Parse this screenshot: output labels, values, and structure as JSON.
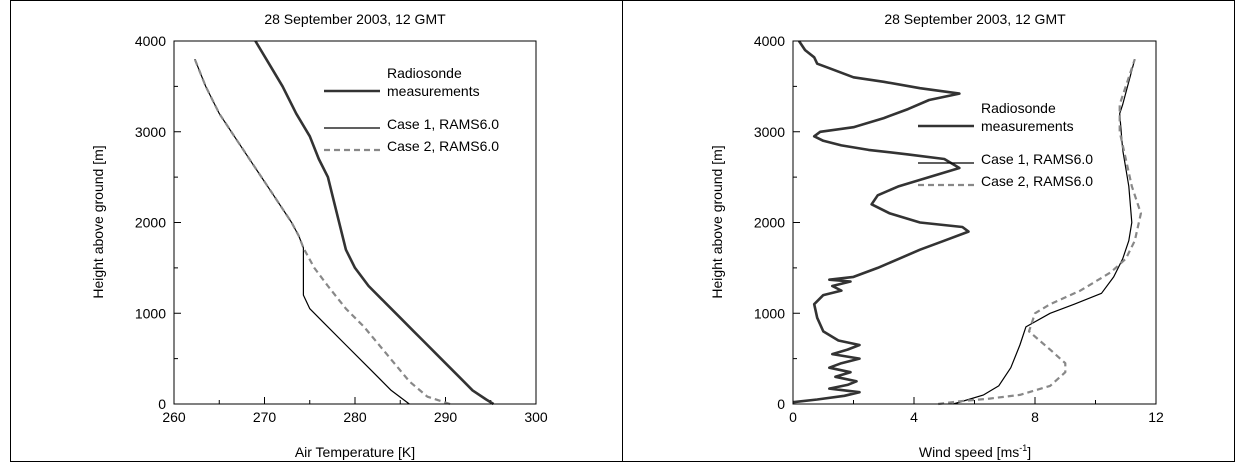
{
  "chart_data": [
    {
      "type": "line",
      "title": "28 September 2003, 12 GMT",
      "xlabel": "Air Temperature [K]",
      "ylabel": "Height above ground [m]",
      "xlim": [
        260,
        300
      ],
      "ylim": [
        0,
        4000
      ],
      "xticks": [
        260,
        270,
        280,
        290,
        300
      ],
      "yticks": [
        0,
        1000,
        2000,
        3000,
        4000
      ],
      "legend_position": "top-right",
      "series": [
        {
          "name": "Radiosonde measurements",
          "legend_lines": [
            "Radiosonde",
            "measurements"
          ],
          "style": "thick",
          "color": "#333333",
          "points": [
            [
              295.3,
              0
            ],
            [
              294.5,
              50
            ],
            [
              293,
              150
            ],
            [
              291.5,
              300
            ],
            [
              290,
              450
            ],
            [
              289,
              550
            ],
            [
              287.5,
              700
            ],
            [
              286.5,
              800
            ],
            [
              285,
              950
            ],
            [
              283.5,
              1100
            ],
            [
              281.5,
              1300
            ],
            [
              280,
              1500
            ],
            [
              279,
              1700
            ],
            [
              278.5,
              1900
            ],
            [
              278,
              2100
            ],
            [
              277.5,
              2300
            ],
            [
              277,
              2500
            ],
            [
              276,
              2700
            ],
            [
              275,
              2950
            ],
            [
              273.5,
              3200
            ],
            [
              272,
              3500
            ],
            [
              270.5,
              3750
            ],
            [
              269,
              4000
            ]
          ]
        },
        {
          "name": "Case 1, RAMS6.0",
          "legend_lines": [
            "Case 1, RAMS6.0"
          ],
          "style": "thin",
          "color": "#000000",
          "points": [
            [
              286,
              0
            ],
            [
              284,
              150
            ],
            [
              281.5,
              400
            ],
            [
              279,
              650
            ],
            [
              276.5,
              900
            ],
            [
              275,
              1050
            ],
            [
              274.3,
              1200
            ],
            [
              274.3,
              1500
            ],
            [
              274.3,
              1720
            ],
            [
              273.8,
              1850
            ],
            [
              273,
              2000
            ],
            [
              271,
              2300
            ],
            [
              269,
              2600
            ],
            [
              267,
              2900
            ],
            [
              265,
              3200
            ],
            [
              263.5,
              3500
            ],
            [
              262.3,
              3800
            ]
          ]
        },
        {
          "name": "Case 2, RAMS6.0",
          "legend_lines": [
            "Case 2, RAMS6.0"
          ],
          "style": "dashed",
          "color": "#888888",
          "points": [
            [
              290.5,
              0
            ],
            [
              288,
              80
            ],
            [
              286,
              250
            ],
            [
              283.5,
              550
            ],
            [
              281,
              850
            ],
            [
              279,
              1050
            ],
            [
              277,
              1300
            ],
            [
              275.5,
              1500
            ],
            [
              274.3,
              1720
            ],
            [
              273.8,
              1850
            ],
            [
              273,
              2000
            ],
            [
              271,
              2300
            ],
            [
              269,
              2600
            ],
            [
              267,
              2900
            ],
            [
              265,
              3200
            ],
            [
              263.5,
              3500
            ],
            [
              262.3,
              3800
            ]
          ]
        }
      ]
    },
    {
      "type": "line",
      "title": "28 September 2003, 12 GMT",
      "xlabel": "Wind speed [ms-1]",
      "xlabel_main": "Wind speed [ms",
      "xlabel_sup": "-1",
      "xlabel_tail": "]",
      "ylabel": "Height above ground [m]",
      "xlim": [
        0,
        12
      ],
      "ylim": [
        0,
        4000
      ],
      "xticks": [
        0,
        4,
        8,
        12
      ],
      "yticks": [
        0,
        1000,
        2000,
        3000,
        4000
      ],
      "legend_position": "center-right",
      "series": [
        {
          "name": "Radiosonde measurements",
          "legend_lines": [
            "Radiosonde",
            "measurements"
          ],
          "style": "thick",
          "color": "#333333",
          "points": [
            [
              0,
              20
            ],
            [
              0.8,
              50
            ],
            [
              1.7,
              90
            ],
            [
              2.2,
              130
            ],
            [
              1.2,
              170
            ],
            [
              1.8,
              210
            ],
            [
              2.1,
              250
            ],
            [
              1.4,
              300
            ],
            [
              1.9,
              350
            ],
            [
              1.2,
              400
            ],
            [
              1.6,
              450
            ],
            [
              2.2,
              500
            ],
            [
              1.3,
              550
            ],
            [
              1.8,
              600
            ],
            [
              2.2,
              650
            ],
            [
              1.5,
              700
            ],
            [
              1,
              800
            ],
            [
              0.8,
              950
            ],
            [
              0.7,
              1100
            ],
            [
              1,
              1200
            ],
            [
              1.6,
              1250
            ],
            [
              1.3,
              1300
            ],
            [
              1.9,
              1350
            ],
            [
              1.2,
              1370
            ],
            [
              2,
              1400
            ],
            [
              2.8,
              1500
            ],
            [
              3.5,
              1600
            ],
            [
              4.2,
              1700
            ],
            [
              5,
              1800
            ],
            [
              5.8,
              1900
            ],
            [
              5.6,
              1950
            ],
            [
              4.2,
              2000
            ],
            [
              3.2,
              2100
            ],
            [
              2.6,
              2200
            ],
            [
              2.8,
              2300
            ],
            [
              3.5,
              2400
            ],
            [
              4.5,
              2500
            ],
            [
              5.5,
              2600
            ],
            [
              5,
              2700
            ],
            [
              3.8,
              2750
            ],
            [
              2.5,
              2800
            ],
            [
              1.6,
              2850
            ],
            [
              1,
              2900
            ],
            [
              0.7,
              2950
            ],
            [
              0.9,
              3000
            ],
            [
              2,
              3050
            ],
            [
              3,
              3150
            ],
            [
              3.8,
              3250
            ],
            [
              4.5,
              3350
            ],
            [
              5.5,
              3420
            ],
            [
              4.2,
              3480
            ],
            [
              3,
              3550
            ],
            [
              2,
              3600
            ],
            [
              1.2,
              3700
            ],
            [
              0.8,
              3750
            ],
            [
              0.7,
              3820
            ],
            [
              0.4,
              3900
            ],
            [
              0.2,
              4000
            ]
          ]
        },
        {
          "name": "Case 1, RAMS6.0",
          "legend_lines": [
            "Case 1, RAMS6.0"
          ],
          "style": "thin",
          "color": "#000000",
          "points": [
            [
              5.3,
              0
            ],
            [
              5.8,
              50
            ],
            [
              6.3,
              100
            ],
            [
              6.8,
              200
            ],
            [
              7.2,
              400
            ],
            [
              7.5,
              650
            ],
            [
              7.7,
              850
            ],
            [
              8.5,
              1000
            ],
            [
              9.3,
              1100
            ],
            [
              10.2,
              1220
            ],
            [
              10.6,
              1400
            ],
            [
              10.9,
              1600
            ],
            [
              11.1,
              1800
            ],
            [
              11.2,
              2000
            ],
            [
              11.1,
              2400
            ],
            [
              10.9,
              2800
            ],
            [
              10.8,
              3200
            ],
            [
              10.9,
              3300
            ],
            [
              11.3,
              3800
            ]
          ]
        },
        {
          "name": "Case 2, RAMS6.0",
          "legend_lines": [
            "Case 2, RAMS6.0"
          ],
          "style": "dashed",
          "color": "#888888",
          "points": [
            [
              4.8,
              0
            ],
            [
              5.5,
              30
            ],
            [
              6.5,
              60
            ],
            [
              7.5,
              100
            ],
            [
              8.5,
              200
            ],
            [
              9,
              350
            ],
            [
              9,
              450
            ],
            [
              8.5,
              600
            ],
            [
              7.8,
              800
            ],
            [
              8,
              1000
            ],
            [
              8.5,
              1100
            ],
            [
              9.5,
              1250
            ],
            [
              10.5,
              1450
            ],
            [
              11,
              1600
            ],
            [
              11.3,
              1800
            ],
            [
              11.5,
              2100
            ],
            [
              11.2,
              2400
            ],
            [
              11,
              2700
            ],
            [
              10.8,
              3000
            ],
            [
              10.8,
              3300
            ],
            [
              11.1,
              3600
            ],
            [
              11.3,
              3800
            ]
          ]
        }
      ]
    }
  ]
}
